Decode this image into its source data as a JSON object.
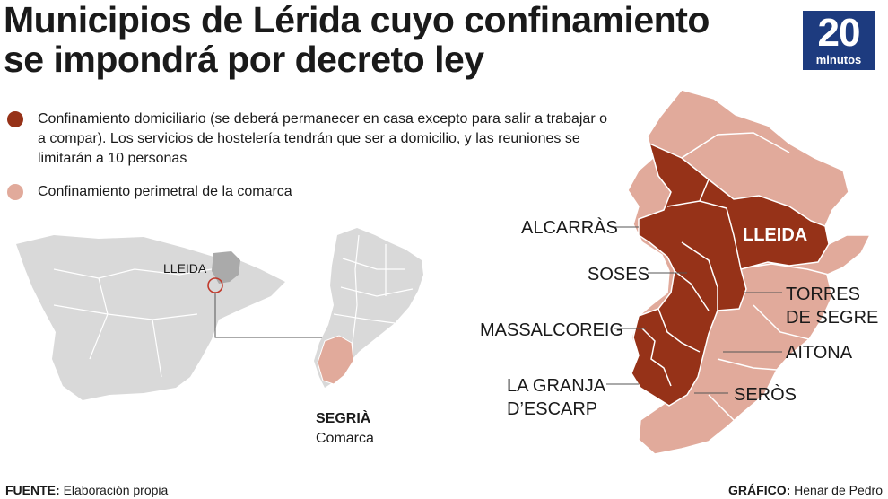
{
  "title": {
    "line1": "Municipios de Lérida cuyo confinamiento",
    "line2": "se impondrá por decreto ley"
  },
  "logo": {
    "number": "20",
    "word": "minutos",
    "color": "#1d3b7f"
  },
  "legend": [
    {
      "color": "#963218",
      "text": "Confinamiento domiciliario (se deberá permanecer en casa excepto para salir a trabajar o a compar). Los servicios de hostelería tendrán que ser a domicilio, y las reuniones se limitarán a 10 personas"
    },
    {
      "color": "#e1aa9b",
      "text": "Confinamiento perimetral de la comarca"
    }
  ],
  "overview": {
    "lleida_label": "LLEIDA",
    "comarca_name": "SEGRIÀ",
    "comarca_type": "Comarca"
  },
  "municipios": {
    "alcarras": "ALCARRÀS",
    "lleida": "LLEIDA",
    "soses": "SOSES",
    "torres_line1": "TORRES",
    "torres_line2": "DE SEGRE",
    "massalcoreig": "MASSALCOREIG",
    "aitona": "AITONA",
    "granja_line1": "LA GRANJA",
    "granja_line2": "D’ESCARP",
    "seros": "SERÒS"
  },
  "colors": {
    "domiciliario": "#963218",
    "perimetral": "#e1aa9b",
    "spain": "#d9d9d9",
    "catalonia": "#aaaaaa"
  },
  "footer": {
    "source_label": "FUENTE:",
    "source_value": "Elaboración propia",
    "credit_label": "GRÁFICO:",
    "credit_value": "Henar de Pedro"
  }
}
